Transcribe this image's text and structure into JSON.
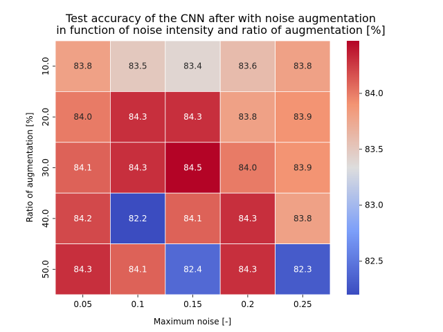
{
  "chart_data": {
    "type": "heatmap",
    "title_lines": [
      "Test accuracy of the CNN after with noise augmentation",
      "in function of noise intensity and ratio of augmentation [%]"
    ],
    "xlabel": "Maximum noise [-]",
    "ylabel": "Ratio of augmentation [%]",
    "x_categories": [
      "0.05",
      "0.1",
      "0.15",
      "0.2",
      "0.25"
    ],
    "y_categories": [
      "10.0",
      "20.0",
      "30.0",
      "40.0",
      "50.0"
    ],
    "values": [
      [
        83.8,
        83.5,
        83.4,
        83.6,
        83.8
      ],
      [
        84.0,
        84.3,
        84.3,
        83.8,
        83.9
      ],
      [
        84.1,
        84.3,
        84.5,
        84.0,
        83.9
      ],
      [
        84.2,
        82.2,
        84.1,
        84.3,
        83.8
      ],
      [
        84.3,
        84.1,
        82.4,
        84.3,
        82.3
      ]
    ],
    "value_labels": [
      [
        "83.8",
        "83.5",
        "83.4",
        "83.6",
        "83.8"
      ],
      [
        "84.0",
        "84.3",
        "84.3",
        "83.8",
        "83.9"
      ],
      [
        "84.1",
        "84.3",
        "84.5",
        "84.0",
        "83.9"
      ],
      [
        "84.2",
        "82.2",
        "84.1",
        "84.3",
        "83.8"
      ],
      [
        "84.3",
        "84.1",
        "82.4",
        "84.3",
        "82.3"
      ]
    ],
    "colormap": "coolwarm",
    "vmin": 82.2,
    "vmax": 84.47,
    "colorbar_ticks": [
      82.5,
      83.0,
      83.5,
      84.0
    ],
    "colorbar_tick_labels": [
      "82.5",
      "83.0",
      "83.5",
      "84.0"
    ],
    "annotated": true
  }
}
